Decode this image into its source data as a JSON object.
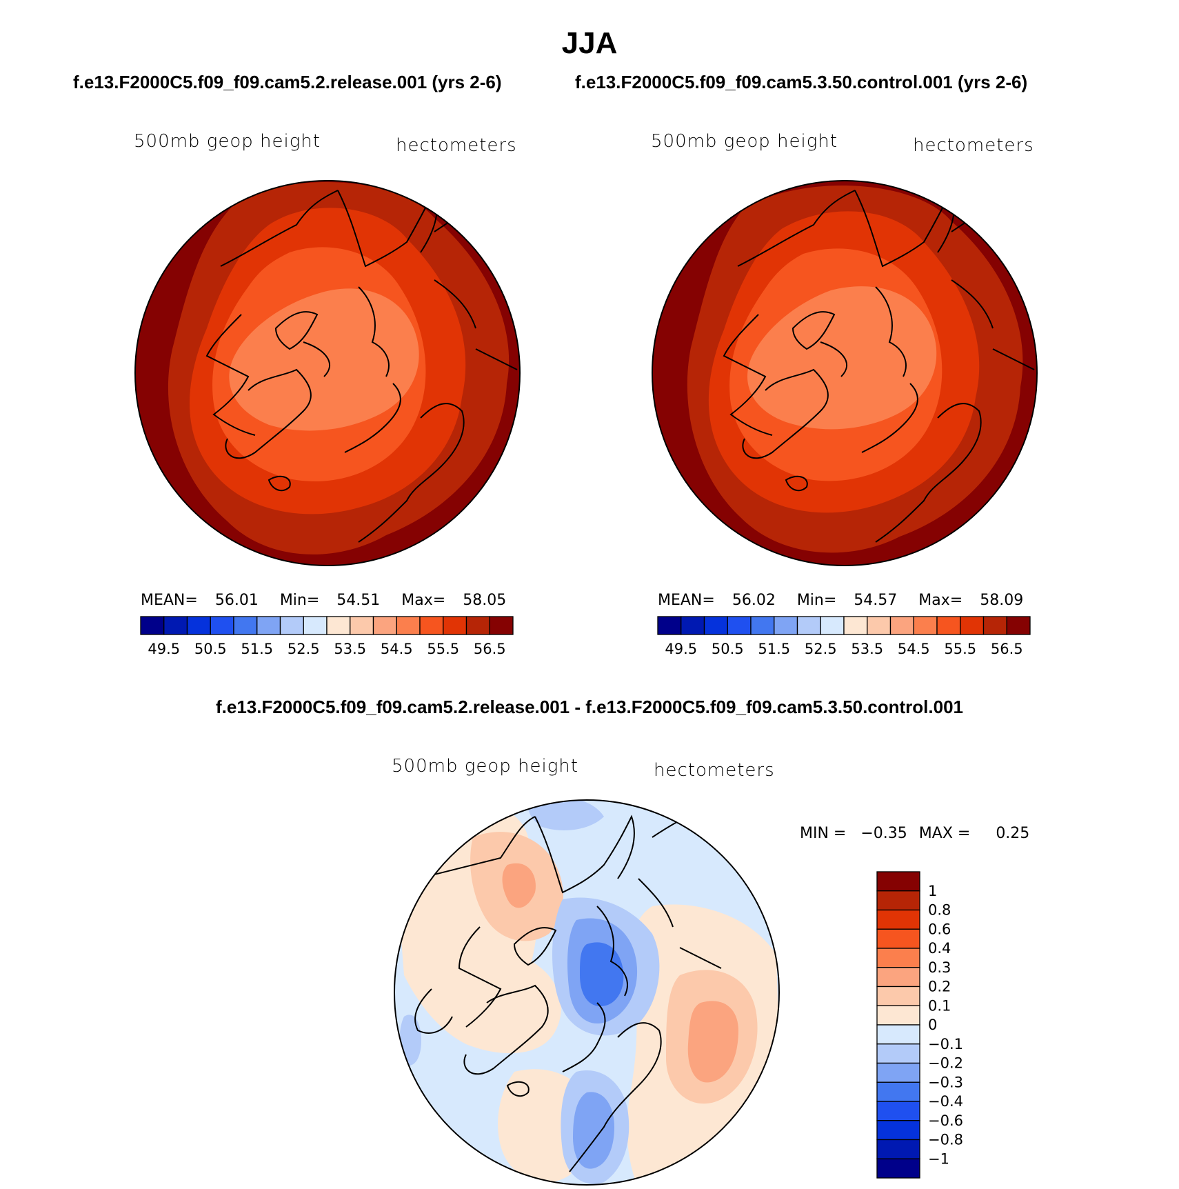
{
  "figure": {
    "title": "JJA",
    "case_left": "f.e13.F2000C5.f09_f09.cam5.2.release.001 (yrs 2-6)",
    "case_right": "f.e13.F2000C5.f09_f09.cam5.3.50.control.001 (yrs 2-6)",
    "diff_title": "f.e13.F2000C5.f09_f09.cam5.2.release.001 - f.e13.F2000C5.f09_f09.cam5.3.50.control.001"
  },
  "panels": [
    {
      "variable": "500mb geop height",
      "units": "hectometers",
      "stats": {
        "mean_label": "MEAN=",
        "mean": "56.01",
        "min_label": "Min=",
        "min": "54.51",
        "max_label": "Max=",
        "max": "58.05"
      }
    },
    {
      "variable": "500mb geop height",
      "units": "hectometers",
      "stats": {
        "mean_label": "MEAN=",
        "mean": "56.02",
        "min_label": "Min=",
        "min": "54.57",
        "max_label": "Max=",
        "max": "58.09"
      }
    },
    {
      "variable": "500mb geop height",
      "units": "hectometers",
      "stats": {
        "min_label": "MIN =",
        "min": "−0.35",
        "max_label": "MAX =",
        "max": "0.25"
      }
    }
  ],
  "colorbars": {
    "absolute": {
      "colors": [
        "#00008a",
        "#0019b2",
        "#0532dc",
        "#1f50f0",
        "#4277f0",
        "#7fa4f4",
        "#b3cbf9",
        "#d7e9fd",
        "#fde7d3",
        "#fcc9ab",
        "#fba47f",
        "#fb7f4d",
        "#f6551f",
        "#e13405",
        "#b62506",
        "#850202"
      ],
      "labels": [
        "49.5",
        "50.5",
        "51.5",
        "52.5",
        "53.5",
        "54.5",
        "55.5",
        "56.5"
      ]
    },
    "difference": {
      "colors": [
        "#850202",
        "#b62506",
        "#e13405",
        "#f6551f",
        "#fb7f4d",
        "#fba47f",
        "#fcc9ab",
        "#fde7d3",
        "#d7e9fd",
        "#b3cbf9",
        "#7fa4f4",
        "#4277f0",
        "#1f50f0",
        "#0532dc",
        "#0019b2",
        "#00008a"
      ],
      "labels": [
        "1",
        "0.8",
        "0.6",
        "0.4",
        "0.3",
        "0.2",
        "0.1",
        "0",
        "−0.1",
        "−0.2",
        "−0.3",
        "−0.4",
        "−0.6",
        "−0.8",
        "−1"
      ]
    }
  }
}
